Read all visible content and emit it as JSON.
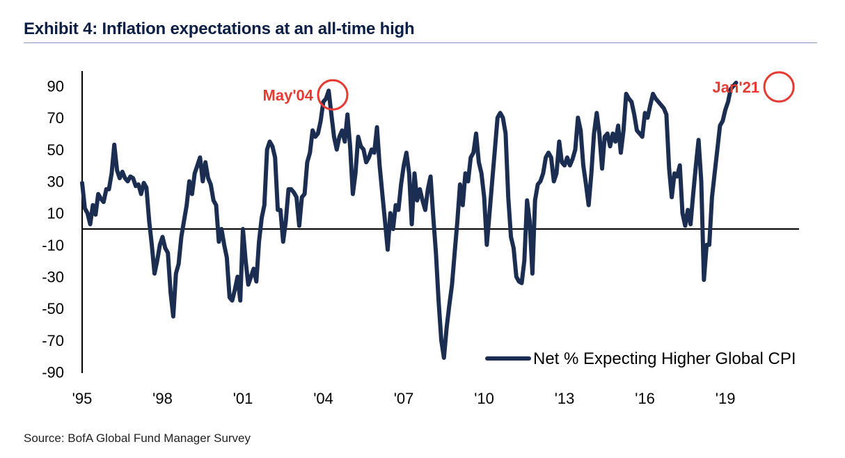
{
  "title": "Exhibit 4: Inflation expectations at an all-time high",
  "source": "Source: BofA Global Fund Manager Survey",
  "colors": {
    "line": "#1b2e52",
    "annotation": "#e53b32",
    "title": "#0a1e46"
  },
  "chart_data": {
    "type": "line",
    "title": "Exhibit 4: Inflation expectations at an all-time high",
    "xlabel": "",
    "ylabel": "",
    "xlim": [
      1995.0,
      2021.75
    ],
    "ylim": [
      -90,
      100
    ],
    "grid": false,
    "legend_position": "bottom-right",
    "x_tick_labels": [
      "'95",
      "'98",
      "'01",
      "'04",
      "'07",
      "'10",
      "'13",
      "'16",
      "'19"
    ],
    "x_tick_values": [
      1995,
      1998,
      2001,
      2004,
      2007,
      2010,
      2013,
      2016,
      2019
    ],
    "y_tick_values": [
      90,
      70,
      50,
      30,
      10,
      -10,
      -30,
      -50,
      -70,
      -90
    ],
    "annotations": [
      {
        "label": "May'04",
        "x": 2004.35,
        "y": 87
      },
      {
        "label": "Jan'21",
        "x": 2021.0,
        "y": 92
      }
    ],
    "series": [
      {
        "name": "Net % Expecting Higher Global CPI",
        "points": [
          [
            1995.0,
            29
          ],
          [
            1995.1,
            13
          ],
          [
            1995.2,
            10
          ],
          [
            1995.3,
            3
          ],
          [
            1995.4,
            15
          ],
          [
            1995.5,
            9
          ],
          [
            1995.6,
            22
          ],
          [
            1995.7,
            19
          ],
          [
            1995.8,
            17
          ],
          [
            1995.9,
            25
          ],
          [
            1996.0,
            25
          ],
          [
            1996.1,
            35
          ],
          [
            1996.2,
            53
          ],
          [
            1996.3,
            37
          ],
          [
            1996.4,
            32
          ],
          [
            1996.5,
            36
          ],
          [
            1996.6,
            32
          ],
          [
            1996.7,
            30
          ],
          [
            1996.8,
            33
          ],
          [
            1996.9,
            32
          ],
          [
            1997.0,
            27
          ],
          [
            1997.1,
            28
          ],
          [
            1997.2,
            22
          ],
          [
            1997.3,
            29
          ],
          [
            1997.4,
            26
          ],
          [
            1997.5,
            5
          ],
          [
            1997.6,
            -10
          ],
          [
            1997.7,
            -28
          ],
          [
            1997.8,
            -20
          ],
          [
            1997.9,
            -10
          ],
          [
            1998.0,
            -5
          ],
          [
            1998.1,
            -12
          ],
          [
            1998.2,
            -15
          ],
          [
            1998.3,
            -40
          ],
          [
            1998.4,
            -55
          ],
          [
            1998.5,
            -28
          ],
          [
            1998.6,
            -22
          ],
          [
            1998.7,
            -5
          ],
          [
            1998.8,
            5
          ],
          [
            1998.9,
            15
          ],
          [
            1999.0,
            30
          ],
          [
            1999.1,
            22
          ],
          [
            1999.2,
            35
          ],
          [
            1999.3,
            40
          ],
          [
            1999.4,
            45
          ],
          [
            1999.5,
            30
          ],
          [
            1999.6,
            42
          ],
          [
            1999.7,
            32
          ],
          [
            1999.8,
            28
          ],
          [
            1999.9,
            18
          ],
          [
            2000.0,
            15
          ],
          [
            2000.1,
            -8
          ],
          [
            2000.2,
            0
          ],
          [
            2000.3,
            -10
          ],
          [
            2000.4,
            -18
          ],
          [
            2000.5,
            -43
          ],
          [
            2000.6,
            -45
          ],
          [
            2000.7,
            -38
          ],
          [
            2000.8,
            -30
          ],
          [
            2000.9,
            -45
          ],
          [
            2001.0,
            0
          ],
          [
            2001.1,
            -20
          ],
          [
            2001.2,
            -35
          ],
          [
            2001.3,
            -30
          ],
          [
            2001.4,
            -25
          ],
          [
            2001.5,
            -33
          ],
          [
            2001.6,
            -8
          ],
          [
            2001.7,
            7
          ],
          [
            2001.8,
            15
          ],
          [
            2001.9,
            50
          ],
          [
            2002.0,
            55
          ],
          [
            2002.1,
            52
          ],
          [
            2002.2,
            45
          ],
          [
            2002.3,
            12
          ],
          [
            2002.4,
            12
          ],
          [
            2002.5,
            -8
          ],
          [
            2002.6,
            5
          ],
          [
            2002.7,
            25
          ],
          [
            2002.8,
            25
          ],
          [
            2002.9,
            23
          ],
          [
            2003.0,
            20
          ],
          [
            2003.1,
            2
          ],
          [
            2003.2,
            20
          ],
          [
            2003.3,
            22
          ],
          [
            2003.4,
            42
          ],
          [
            2003.5,
            48
          ],
          [
            2003.6,
            62
          ],
          [
            2003.7,
            58
          ],
          [
            2003.8,
            60
          ],
          [
            2003.9,
            68
          ],
          [
            2004.0,
            80
          ],
          [
            2004.1,
            82
          ],
          [
            2004.2,
            87
          ],
          [
            2004.3,
            72
          ],
          [
            2004.4,
            58
          ],
          [
            2004.5,
            50
          ],
          [
            2004.6,
            58
          ],
          [
            2004.7,
            62
          ],
          [
            2004.8,
            55
          ],
          [
            2004.9,
            72
          ],
          [
            2005.0,
            52
          ],
          [
            2005.1,
            22
          ],
          [
            2005.2,
            35
          ],
          [
            2005.3,
            58
          ],
          [
            2005.4,
            52
          ],
          [
            2005.5,
            50
          ],
          [
            2005.6,
            42
          ],
          [
            2005.7,
            45
          ],
          [
            2005.8,
            50
          ],
          [
            2005.9,
            48
          ],
          [
            2006.0,
            64
          ],
          [
            2006.1,
            40
          ],
          [
            2006.2,
            22
          ],
          [
            2006.3,
            5
          ],
          [
            2006.4,
            -13
          ],
          [
            2006.5,
            10
          ],
          [
            2006.6,
            0
          ],
          [
            2006.7,
            15
          ],
          [
            2006.8,
            12
          ],
          [
            2006.9,
            28
          ],
          [
            2007.0,
            40
          ],
          [
            2007.1,
            48
          ],
          [
            2007.2,
            35
          ],
          [
            2007.3,
            3
          ],
          [
            2007.4,
            35
          ],
          [
            2007.5,
            18
          ],
          [
            2007.6,
            25
          ],
          [
            2007.7,
            18
          ],
          [
            2007.8,
            12
          ],
          [
            2007.9,
            25
          ],
          [
            2008.0,
            33
          ],
          [
            2008.1,
            8
          ],
          [
            2008.2,
            -15
          ],
          [
            2008.3,
            -45
          ],
          [
            2008.4,
            -70
          ],
          [
            2008.5,
            -81
          ],
          [
            2008.6,
            -62
          ],
          [
            2008.7,
            -48
          ],
          [
            2008.8,
            -35
          ],
          [
            2008.9,
            -15
          ],
          [
            2009.0,
            5
          ],
          [
            2009.1,
            28
          ],
          [
            2009.2,
            15
          ],
          [
            2009.3,
            35
          ],
          [
            2009.4,
            30
          ],
          [
            2009.5,
            45
          ],
          [
            2009.6,
            48
          ],
          [
            2009.7,
            60
          ],
          [
            2009.8,
            42
          ],
          [
            2009.9,
            35
          ],
          [
            2010.0,
            20
          ],
          [
            2010.1,
            -10
          ],
          [
            2010.2,
            10
          ],
          [
            2010.3,
            30
          ],
          [
            2010.4,
            50
          ],
          [
            2010.5,
            70
          ],
          [
            2010.6,
            73
          ],
          [
            2010.7,
            70
          ],
          [
            2010.8,
            60
          ],
          [
            2010.9,
            20
          ],
          [
            2011.0,
            -5
          ],
          [
            2011.1,
            -12
          ],
          [
            2011.2,
            -30
          ],
          [
            2011.3,
            -33
          ],
          [
            2011.4,
            -34
          ],
          [
            2011.5,
            -20
          ],
          [
            2011.6,
            18
          ],
          [
            2011.7,
            5
          ],
          [
            2011.8,
            -28
          ],
          [
            2011.9,
            18
          ],
          [
            2012.0,
            28
          ],
          [
            2012.1,
            30
          ],
          [
            2012.2,
            35
          ],
          [
            2012.3,
            45
          ],
          [
            2012.4,
            48
          ],
          [
            2012.5,
            45
          ],
          [
            2012.6,
            30
          ],
          [
            2012.7,
            35
          ],
          [
            2012.8,
            55
          ],
          [
            2012.9,
            42
          ],
          [
            2013.0,
            40
          ],
          [
            2013.1,
            45
          ],
          [
            2013.2,
            40
          ],
          [
            2013.3,
            44
          ],
          [
            2013.4,
            50
          ],
          [
            2013.5,
            70
          ],
          [
            2013.6,
            62
          ],
          [
            2013.7,
            40
          ],
          [
            2013.8,
            28
          ],
          [
            2013.9,
            15
          ],
          [
            2014.0,
            35
          ],
          [
            2014.1,
            60
          ],
          [
            2014.2,
            73
          ],
          [
            2014.3,
            60
          ],
          [
            2014.4,
            38
          ],
          [
            2014.5,
            58
          ],
          [
            2014.6,
            60
          ],
          [
            2014.7,
            52
          ],
          [
            2014.8,
            60
          ],
          [
            2014.9,
            55
          ],
          [
            2015.0,
            65
          ],
          [
            2015.1,
            48
          ],
          [
            2015.2,
            62
          ],
          [
            2015.3,
            85
          ],
          [
            2015.4,
            82
          ],
          [
            2015.5,
            80
          ],
          [
            2015.6,
            72
          ],
          [
            2015.7,
            62
          ],
          [
            2015.8,
            60
          ],
          [
            2015.9,
            58
          ],
          [
            2016.0,
            73
          ],
          [
            2016.1,
            70
          ],
          [
            2016.2,
            78
          ],
          [
            2016.3,
            85
          ],
          [
            2016.4,
            82
          ],
          [
            2016.5,
            80
          ],
          [
            2016.6,
            78
          ],
          [
            2016.7,
            76
          ],
          [
            2016.8,
            72
          ],
          [
            2016.9,
            38
          ],
          [
            2017.0,
            20
          ],
          [
            2017.1,
            35
          ],
          [
            2017.2,
            33
          ],
          [
            2017.3,
            40
          ],
          [
            2017.4,
            10
          ],
          [
            2017.5,
            2
          ],
          [
            2017.6,
            12
          ],
          [
            2017.7,
            3
          ],
          [
            2017.8,
            22
          ],
          [
            2017.9,
            40
          ],
          [
            2018.0,
            56
          ],
          [
            2018.1,
            30
          ],
          [
            2018.2,
            -32
          ],
          [
            2018.3,
            -10
          ],
          [
            2018.4,
            -10
          ],
          [
            2018.5,
            20
          ],
          [
            2018.6,
            35
          ],
          [
            2018.7,
            50
          ],
          [
            2018.8,
            65
          ],
          [
            2018.9,
            68
          ],
          [
            2019.0,
            75
          ],
          [
            2019.1,
            80
          ],
          [
            2019.2,
            88
          ],
          [
            2019.4,
            92
          ]
        ]
      }
    ]
  }
}
